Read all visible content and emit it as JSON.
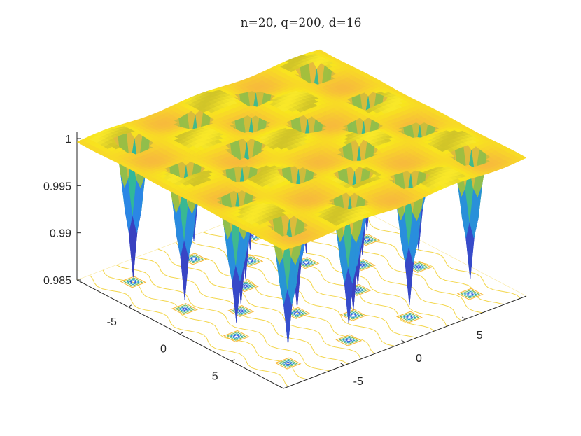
{
  "chart_data": {
    "type": "surface",
    "title": "n=20, q=200, d=16",
    "xlabel": "",
    "ylabel": "",
    "zlabel": "",
    "xlim": [
      -10,
      10
    ],
    "ylim": [
      -10,
      10
    ],
    "zlim": [
      0.985,
      1
    ],
    "x_ticks": [
      "-5",
      "0",
      "5"
    ],
    "y_ticks": [
      "-5",
      "0",
      "5"
    ],
    "z_ticks": [
      "0.985",
      "0.99",
      "0.995",
      "1"
    ],
    "colormap": "parula",
    "colors": {
      "low": "#3e26a8",
      "mid": "#21b7a6",
      "high": "#f9fb0e"
    },
    "contour_projection": true,
    "grid": false,
    "spike_minima": [
      {
        "x": -7.5,
        "y": -7.5,
        "z": 0.9855
      },
      {
        "x": -7.5,
        "y": -2.5,
        "z": 0.9869
      },
      {
        "x": -7.5,
        "y": 2.5,
        "z": 0.9869
      },
      {
        "x": -7.5,
        "y": 7.5,
        "z": 0.9866
      },
      {
        "x": -2.5,
        "y": -7.5,
        "z": 0.986
      },
      {
        "x": -2.5,
        "y": -2.5,
        "z": 0.9858
      },
      {
        "x": -2.5,
        "y": 2.5,
        "z": 0.9861
      },
      {
        "x": -2.5,
        "y": 7.5,
        "z": 0.9859
      },
      {
        "x": 2.5,
        "y": -7.5,
        "z": 0.9864
      },
      {
        "x": 2.5,
        "y": -2.5,
        "z": 0.9856
      },
      {
        "x": 2.5,
        "y": 2.5,
        "z": 0.9855
      },
      {
        "x": 2.5,
        "y": 7.5,
        "z": 0.9868
      },
      {
        "x": 7.5,
        "y": -7.5,
        "z": 0.987
      },
      {
        "x": 7.5,
        "y": -2.5,
        "z": 0.9867
      },
      {
        "x": 7.5,
        "y": 2.5,
        "z": 0.9863
      },
      {
        "x": 7.5,
        "y": 7.5,
        "z": 0.9866
      },
      {
        "x": -5,
        "y": 0,
        "z": 0.9862
      },
      {
        "x": 0,
        "y": -5,
        "z": 0.9857
      },
      {
        "x": 0,
        "y": 5,
        "z": 0.986
      },
      {
        "x": 5,
        "y": 0,
        "z": 0.9855
      }
    ]
  }
}
